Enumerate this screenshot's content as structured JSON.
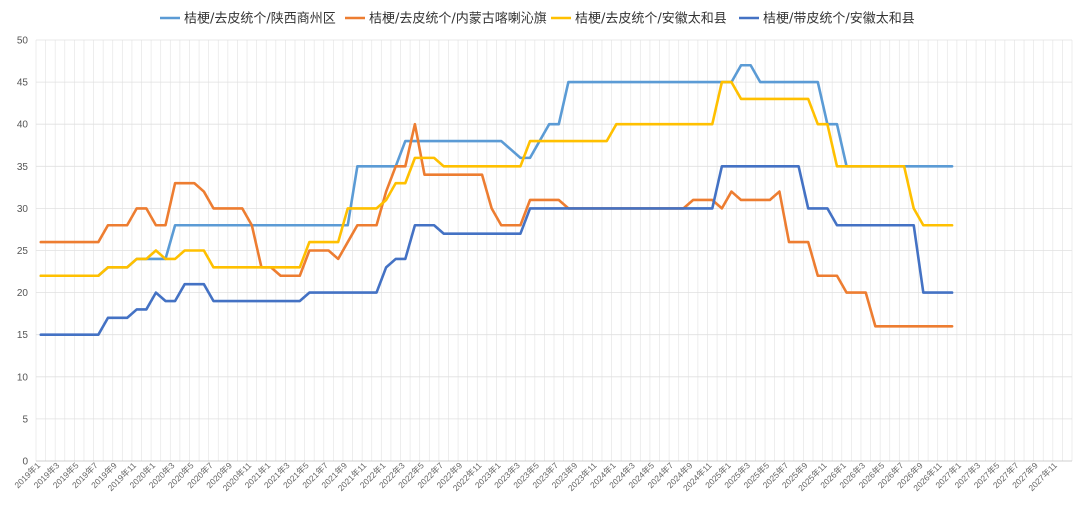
{
  "chart_data": {
    "type": "line",
    "grid": true,
    "legend_position": "top",
    "ylim": [
      0,
      50
    ],
    "y_ticks": [
      0,
      5,
      10,
      15,
      20,
      25,
      30,
      35,
      40,
      45,
      50
    ],
    "x_tick_labels": [
      "2019年1",
      "2019年3",
      "2019年5",
      "2019年7",
      "2019年9",
      "2019年11",
      "2020年1",
      "2020年3",
      "2020年5",
      "2020年7",
      "2020年9",
      "2020年11",
      "2021年1",
      "2021年3",
      "2021年5",
      "2021年7",
      "2021年9",
      "2021年11",
      "2022年1",
      "2022年3",
      "2022年5",
      "2022年7",
      "2022年9",
      "2022年11",
      "2023年1",
      "2023年3",
      "2023年5",
      "2023年7",
      "2023年9",
      "2023年11",
      "2024年1",
      "2024年3",
      "2024年5",
      "2024年7",
      "2024年9",
      "2024年11",
      "2025年1",
      "2025年3",
      "2025年5",
      "2025年7",
      "2025年9",
      "2025年11",
      "2026年1",
      "2026年3",
      "2026年5",
      "2026年7",
      "2026年9",
      "2026年11",
      "2027年1",
      "2027年3",
      "2027年5",
      "2027年7",
      "2027年9",
      "2027年11"
    ],
    "series": [
      {
        "name": "桔梗/去皮统个/陕西商州区",
        "color": "#5B9BD5",
        "values": [
          22,
          22,
          22,
          22,
          22,
          22,
          22,
          23,
          23,
          23,
          24,
          24,
          24,
          24,
          28,
          28,
          28,
          28,
          28,
          28,
          28,
          28,
          28,
          28,
          28,
          28,
          28,
          28,
          28,
          28,
          28,
          28,
          28,
          35,
          35,
          35,
          35,
          35,
          38,
          38,
          38,
          38,
          38,
          38,
          38,
          38,
          38,
          38,
          38,
          37,
          36,
          36,
          38,
          40,
          40,
          45,
          45,
          45,
          45,
          45,
          45,
          45,
          45,
          45,
          45,
          45,
          45,
          45,
          45,
          45,
          45,
          45,
          45,
          47,
          47,
          45,
          45,
          45,
          45,
          45,
          45,
          45,
          40,
          40,
          35,
          35,
          35,
          35,
          35,
          35,
          35,
          35,
          35,
          35,
          35,
          35
        ]
      },
      {
        "name": "桔梗/去皮统个/内蒙古喀喇沁旗",
        "color": "#ED7D31",
        "values": [
          26,
          26,
          26,
          26,
          26,
          26,
          26,
          28,
          28,
          28,
          30,
          30,
          28,
          28,
          33,
          33,
          33,
          32,
          30,
          30,
          30,
          30,
          28,
          23,
          23,
          22,
          22,
          22,
          25,
          25,
          25,
          24,
          26,
          28,
          28,
          28,
          32,
          35,
          35,
          40,
          34,
          34,
          34,
          34,
          34,
          34,
          34,
          30,
          28,
          28,
          28,
          31,
          31,
          31,
          31,
          30,
          30,
          30,
          30,
          30,
          30,
          30,
          30,
          30,
          30,
          30,
          30,
          30,
          31,
          31,
          31,
          30,
          32,
          31,
          31,
          31,
          31,
          32,
          26,
          26,
          26,
          22,
          22,
          22,
          20,
          20,
          20,
          16,
          16,
          16,
          16,
          16,
          16,
          16,
          16,
          16
        ]
      },
      {
        "name": "桔梗/去皮统个/安徽太和县",
        "color": "#FFC000",
        "values": [
          22,
          22,
          22,
          22,
          22,
          22,
          22,
          23,
          23,
          23,
          24,
          24,
          25,
          24,
          24,
          25,
          25,
          25,
          23,
          23,
          23,
          23,
          23,
          23,
          23,
          23,
          23,
          23,
          26,
          26,
          26,
          26,
          30,
          30,
          30,
          30,
          31,
          33,
          33,
          36,
          36,
          36,
          35,
          35,
          35,
          35,
          35,
          35,
          35,
          35,
          35,
          38,
          38,
          38,
          38,
          38,
          38,
          38,
          38,
          38,
          40,
          40,
          40,
          40,
          40,
          40,
          40,
          40,
          40,
          40,
          40,
          45,
          45,
          43,
          43,
          43,
          43,
          43,
          43,
          43,
          43,
          40,
          40,
          35,
          35,
          35,
          35,
          35,
          35,
          35,
          35,
          30,
          28,
          28,
          28,
          28
        ]
      },
      {
        "name": "桔梗/带皮统个/安徽太和县",
        "color": "#4472C4",
        "values": [
          15,
          15,
          15,
          15,
          15,
          15,
          15,
          17,
          17,
          17,
          18,
          18,
          20,
          19,
          19,
          21,
          21,
          21,
          19,
          19,
          19,
          19,
          19,
          19,
          19,
          19,
          19,
          19,
          20,
          20,
          20,
          20,
          20,
          20,
          20,
          20,
          23,
          24,
          24,
          28,
          28,
          28,
          27,
          27,
          27,
          27,
          27,
          27,
          27,
          27,
          27,
          30,
          30,
          30,
          30,
          30,
          30,
          30,
          30,
          30,
          30,
          30,
          30,
          30,
          30,
          30,
          30,
          30,
          30,
          30,
          30,
          35,
          35,
          35,
          35,
          35,
          35,
          35,
          35,
          35,
          30,
          30,
          30,
          28,
          28,
          28,
          28,
          28,
          28,
          28,
          28,
          28,
          20,
          20,
          20,
          20
        ]
      }
    ]
  }
}
